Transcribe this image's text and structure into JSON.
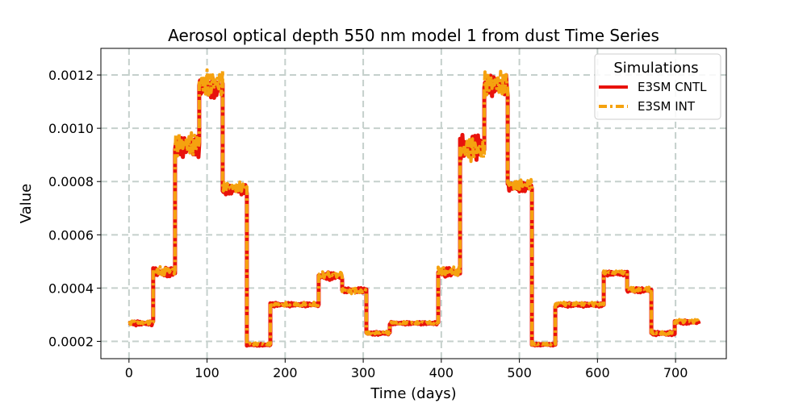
{
  "chart_data": {
    "type": "line",
    "title": "Aerosol optical depth 550 nm model 1 from dust Time Series",
    "xlabel": "Time (days)",
    "ylabel": "Value",
    "xlim": [
      -36,
      765
    ],
    "ylim": [
      0.000135,
      0.0013
    ],
    "xticks": [
      0,
      100,
      200,
      300,
      400,
      500,
      600,
      700
    ],
    "xtick_labels": [
      "0",
      "100",
      "200",
      "300",
      "400",
      "500",
      "600",
      "700"
    ],
    "yticks": [
      0.0002,
      0.0004,
      0.0006,
      0.0008,
      0.001,
      0.0012
    ],
    "ytick_labels": [
      "0.0002",
      "0.0004",
      "0.0006",
      "0.0008",
      "0.0010",
      "0.0012"
    ],
    "grid": true,
    "legend": {
      "title": "Simulations",
      "position": "top-right"
    },
    "series": [
      {
        "name": "E3SM CNTL",
        "color": "#e8120c",
        "style": "solid",
        "segments": [
          {
            "x_start": 0,
            "x_end": 31,
            "mean": 0.000268,
            "amp": 8e-06
          },
          {
            "x_start": 31,
            "x_end": 59,
            "mean": 0.00046,
            "amp": 1.8e-05
          },
          {
            "x_start": 59,
            "x_end": 90,
            "mean": 0.00093,
            "amp": 4e-05
          },
          {
            "x_start": 90,
            "x_end": 120,
            "mean": 0.00115,
            "amp": 4e-05
          },
          {
            "x_start": 120,
            "x_end": 151,
            "mean": 0.00077,
            "amp": 2e-05
          },
          {
            "x_start": 151,
            "x_end": 181,
            "mean": 0.000187,
            "amp": 4e-06
          },
          {
            "x_start": 181,
            "x_end": 243,
            "mean": 0.000338,
            "amp": 7e-06
          },
          {
            "x_start": 243,
            "x_end": 273,
            "mean": 0.000445,
            "amp": 1.5e-05
          },
          {
            "x_start": 273,
            "x_end": 304,
            "mean": 0.000392,
            "amp": 9e-06
          },
          {
            "x_start": 304,
            "x_end": 334,
            "mean": 0.00023,
            "amp": 6e-06
          },
          {
            "x_start": 334,
            "x_end": 396,
            "mean": 0.000268,
            "amp": 5e-06
          },
          {
            "x_start": 396,
            "x_end": 424,
            "mean": 0.00046,
            "amp": 1.8e-05
          },
          {
            "x_start": 424,
            "x_end": 455,
            "mean": 0.00093,
            "amp": 5e-05
          },
          {
            "x_start": 455,
            "x_end": 485,
            "mean": 0.00116,
            "amp": 4e-05
          },
          {
            "x_start": 485,
            "x_end": 516,
            "mean": 0.00078,
            "amp": 2e-05
          },
          {
            "x_start": 516,
            "x_end": 546,
            "mean": 0.000188,
            "amp": 4e-06
          },
          {
            "x_start": 546,
            "x_end": 608,
            "mean": 0.000337,
            "amp": 7e-06
          },
          {
            "x_start": 608,
            "x_end": 638,
            "mean": 0.000455,
            "amp": 8e-06
          },
          {
            "x_start": 638,
            "x_end": 669,
            "mean": 0.000392,
            "amp": 9e-06
          },
          {
            "x_start": 669,
            "x_end": 699,
            "mean": 0.00023,
            "amp": 7e-06
          },
          {
            "x_start": 699,
            "x_end": 730,
            "mean": 0.000272,
            "amp": 7e-06
          }
        ]
      },
      {
        "name": "E3SM INT",
        "color": "#f5a20f",
        "style": "dashdot",
        "segments": [
          {
            "x_start": 0,
            "x_end": 31,
            "mean": 0.00027,
            "amp": 7e-06
          },
          {
            "x_start": 31,
            "x_end": 59,
            "mean": 0.000465,
            "amp": 1.8e-05
          },
          {
            "x_start": 59,
            "x_end": 90,
            "mean": 0.00094,
            "amp": 4.5e-05
          },
          {
            "x_start": 90,
            "x_end": 120,
            "mean": 0.00117,
            "amp": 5e-05
          },
          {
            "x_start": 120,
            "x_end": 151,
            "mean": 0.00078,
            "amp": 2e-05
          },
          {
            "x_start": 151,
            "x_end": 181,
            "mean": 0.00019,
            "amp": 4e-06
          },
          {
            "x_start": 181,
            "x_end": 243,
            "mean": 0.00034,
            "amp": 7e-06
          },
          {
            "x_start": 243,
            "x_end": 273,
            "mean": 0.00045,
            "amp": 1.2e-05
          },
          {
            "x_start": 273,
            "x_end": 304,
            "mean": 0.000388,
            "amp": 1.2e-05
          },
          {
            "x_start": 304,
            "x_end": 334,
            "mean": 0.000232,
            "amp": 6e-06
          },
          {
            "x_start": 334,
            "x_end": 396,
            "mean": 0.00027,
            "amp": 5e-06
          },
          {
            "x_start": 396,
            "x_end": 424,
            "mean": 0.000465,
            "amp": 1.8e-05
          },
          {
            "x_start": 424,
            "x_end": 455,
            "mean": 0.00092,
            "amp": 4.5e-05
          },
          {
            "x_start": 455,
            "x_end": 485,
            "mean": 0.00117,
            "amp": 4.5e-05
          },
          {
            "x_start": 485,
            "x_end": 516,
            "mean": 0.00079,
            "amp": 2.2e-05
          },
          {
            "x_start": 516,
            "x_end": 546,
            "mean": 0.00019,
            "amp": 4e-06
          },
          {
            "x_start": 546,
            "x_end": 608,
            "mean": 0.00034,
            "amp": 7e-06
          },
          {
            "x_start": 608,
            "x_end": 638,
            "mean": 0.000458,
            "amp": 7e-06
          },
          {
            "x_start": 638,
            "x_end": 669,
            "mean": 0.000395,
            "amp": 9e-06
          },
          {
            "x_start": 669,
            "x_end": 699,
            "mean": 0.000232,
            "amp": 7e-06
          },
          {
            "x_start": 699,
            "x_end": 730,
            "mean": 0.000275,
            "amp": 7e-06
          }
        ]
      }
    ]
  }
}
